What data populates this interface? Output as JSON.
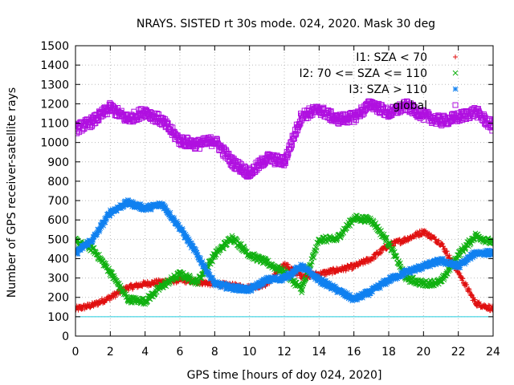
{
  "chart_data": {
    "type": "scatter",
    "title": "NRAYS. SISTED rt 30s mode. 024, 2020. Mask 30 deg",
    "xlabel": "GPS time [hours of doy 024, 2020]",
    "ylabel": "Number of GPS receiver-satellite rays",
    "xlim": [
      0,
      24
    ],
    "ylim": [
      0,
      1500
    ],
    "x_ticks": [
      "0",
      "2",
      "4",
      "6",
      "8",
      "10",
      "12",
      "14",
      "16",
      "18",
      "20",
      "22",
      "24"
    ],
    "y_ticks": [
      "0",
      "100",
      "200",
      "300",
      "400",
      "500",
      "600",
      "700",
      "800",
      "900",
      "1000",
      "1100",
      "1200",
      "1300",
      "1400",
      "1500"
    ],
    "legend_position": "top-right",
    "reference_line": {
      "y": 100,
      "color": "#22ccdd"
    },
    "series": [
      {
        "name": "I1: SZA < 70",
        "marker": "+",
        "color": "#e01010",
        "x": [
          0,
          1,
          2,
          3,
          4,
          5,
          6,
          7,
          8,
          9,
          10,
          11,
          12,
          13,
          14,
          15,
          16,
          17,
          18,
          19,
          20,
          21,
          22,
          23,
          24
        ],
        "y": [
          140,
          160,
          200,
          250,
          270,
          280,
          290,
          280,
          270,
          260,
          250,
          270,
          370,
          310,
          320,
          340,
          360,
          400,
          470,
          500,
          540,
          480,
          330,
          170,
          140
        ]
      },
      {
        "name": "I2: 70 <= SZA <= 110",
        "marker": "x",
        "color": "#10b010",
        "x": [
          0,
          1,
          2,
          3,
          4,
          5,
          6,
          7,
          8,
          9,
          10,
          11,
          12,
          13,
          14,
          15,
          16,
          17,
          18,
          19,
          20,
          21,
          22,
          23,
          24
        ],
        "y": [
          490,
          450,
          330,
          190,
          180,
          260,
          320,
          280,
          420,
          510,
          420,
          380,
          330,
          240,
          500,
          500,
          610,
          600,
          480,
          300,
          270,
          280,
          420,
          520,
          480
        ]
      },
      {
        "name": "I3: SZA > 110",
        "marker": "*",
        "color": "#1080f0",
        "x": [
          0,
          1,
          2,
          3,
          4,
          5,
          6,
          7,
          8,
          9,
          10,
          11,
          12,
          13,
          14,
          15,
          16,
          17,
          18,
          19,
          20,
          21,
          22,
          23,
          24
        ],
        "y": [
          430,
          500,
          640,
          690,
          660,
          680,
          560,
          420,
          270,
          250,
          240,
          290,
          300,
          360,
          290,
          240,
          190,
          230,
          290,
          330,
          360,
          390,
          360,
          430,
          430
        ]
      },
      {
        "name": "global",
        "marker": "square",
        "color": "#b010e0",
        "x": [
          0,
          1,
          2,
          3,
          4,
          5,
          6,
          7,
          8,
          9,
          10,
          11,
          12,
          13,
          14,
          15,
          16,
          17,
          18,
          19,
          20,
          21,
          22,
          23,
          24
        ],
        "y": [
          1070,
          1110,
          1180,
          1120,
          1160,
          1110,
          1010,
          990,
          1010,
          900,
          840,
          920,
          900,
          1140,
          1170,
          1120,
          1130,
          1200,
          1150,
          1190,
          1140,
          1110,
          1130,
          1160,
          1080
        ]
      }
    ]
  }
}
